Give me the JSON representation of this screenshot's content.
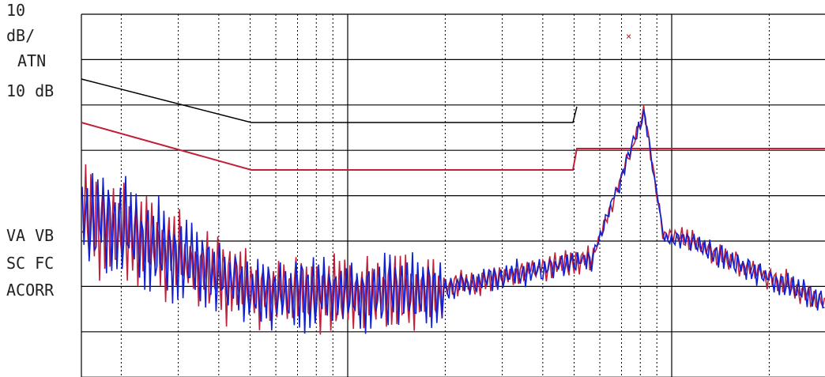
{
  "labels": {
    "scale": "10",
    "scale_unit": "dB/",
    "atten_label": "ATN",
    "atten_value": "10 dB",
    "video": "VA VB",
    "sweep": "SC FC",
    "correction": "ACORR"
  }
}
